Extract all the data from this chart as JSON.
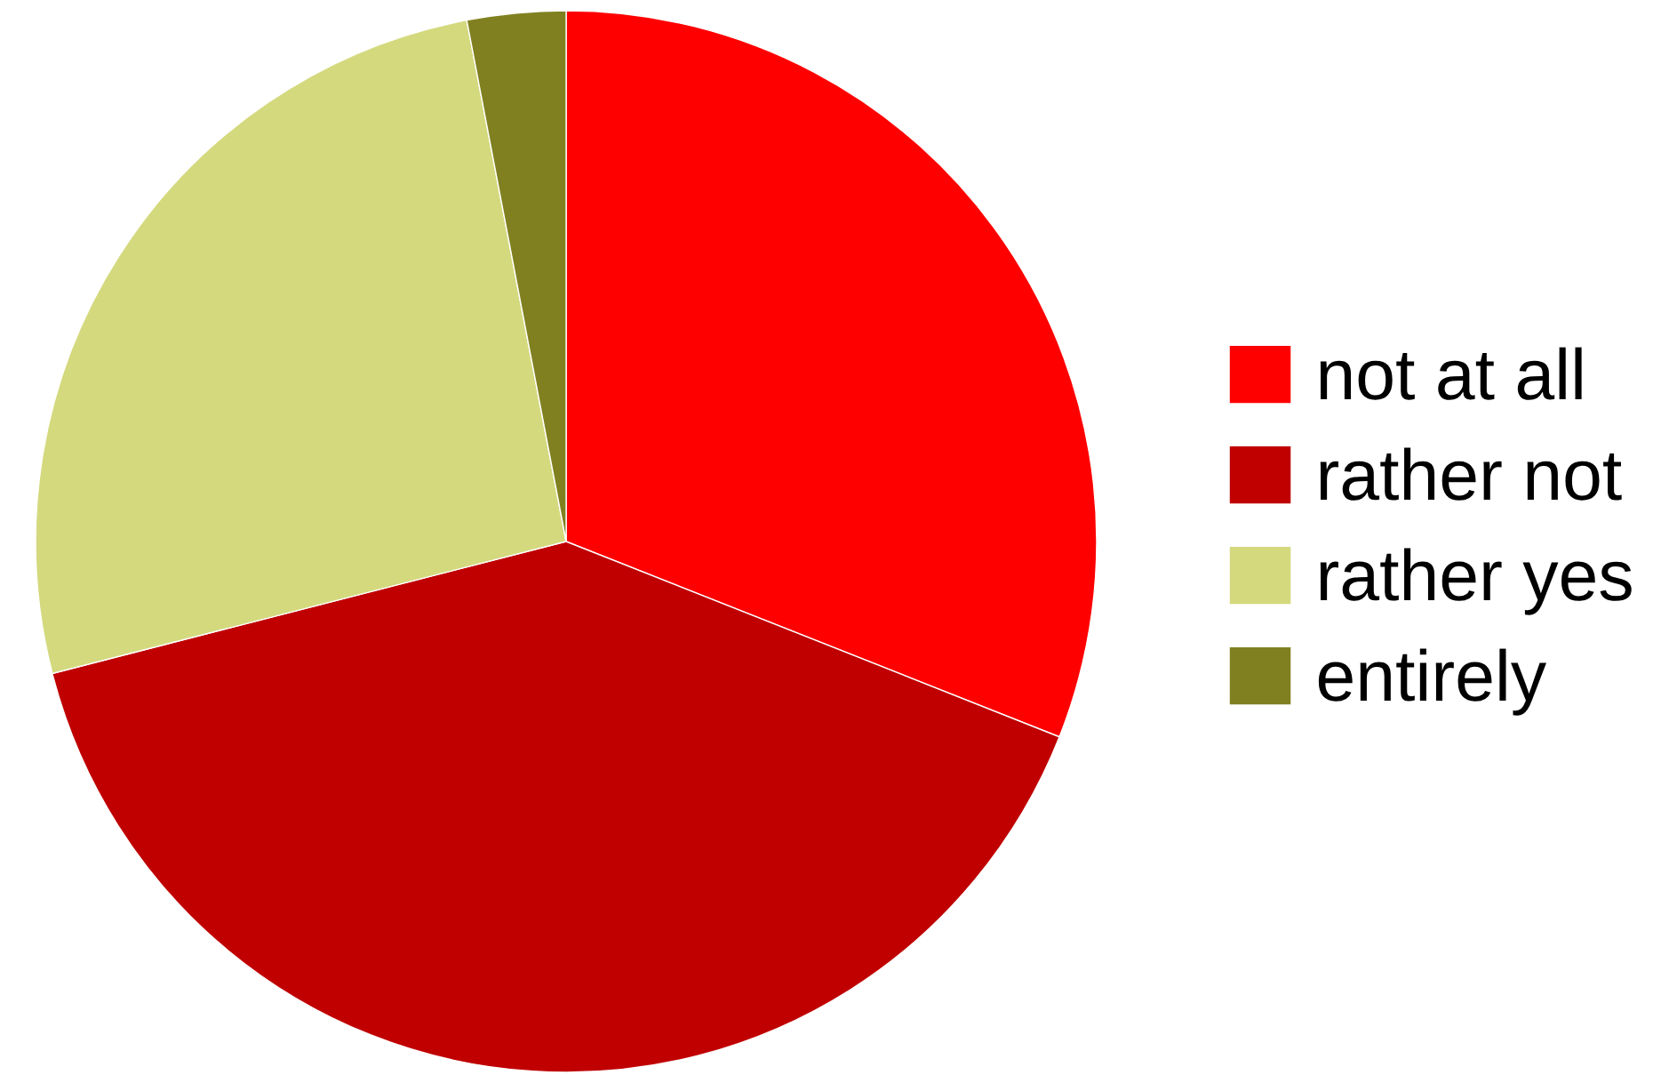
{
  "chart_data": {
    "type": "pie",
    "categories": [
      "not at all",
      "rather not",
      "rather yes",
      "entirely"
    ],
    "values": [
      31,
      40,
      26,
      3
    ],
    "colors": [
      "#ff0000",
      "#c00000",
      "#d4d97e",
      "#808020"
    ],
    "legend": "right"
  }
}
